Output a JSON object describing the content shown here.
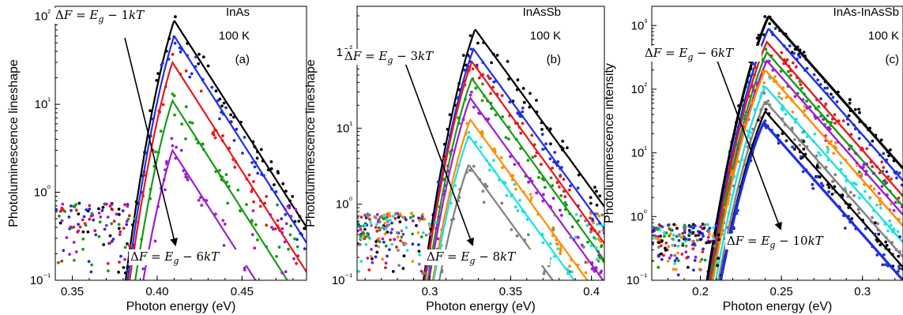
{
  "chart_data": [
    {
      "type": "scatter",
      "panel_label": "(a)",
      "material": "InAs",
      "temperature": "100 K",
      "xlabel": "Photon energy (eV)",
      "ylabel": "Photoluminescence lineshape",
      "xlim": [
        0.34,
        0.488
      ],
      "ylim": [
        0.1,
        130
      ],
      "yscale": "log",
      "xticks": [
        0.35,
        0.4,
        0.45
      ],
      "xticklabels": [
        "0.35",
        "0.40",
        "0.45"
      ],
      "yticks": [
        0.1,
        1,
        10,
        100
      ],
      "yticklabels": [
        "10⁻¹",
        "10⁰",
        "10¹",
        "10²"
      ],
      "arrow": {
        "from_label": "ΔF = E_g − 1kT",
        "to_label": "ΔF = E_g − 6kT"
      },
      "series": [
        {
          "color": "#000000",
          "peak_x": 0.41,
          "peak_y": 90,
          "lw": 2.2
        },
        {
          "color": "#1f2fe0",
          "peak_x": 0.41,
          "peak_y": 60,
          "lw": 2.2
        },
        {
          "color": "#e41a1c",
          "peak_x": 0.409,
          "peak_y": 30,
          "lw": 2.2
        },
        {
          "color": "#1a9a1a",
          "peak_x": 0.409,
          "peak_y": 11,
          "lw": 2.2
        },
        {
          "color": "#9b1fd0",
          "peak_x": 0.409,
          "peak_y": 3,
          "lw": 2.2
        }
      ]
    },
    {
      "type": "scatter",
      "panel_label": "(b)",
      "material": "InAsSb",
      "temperature": "100 K",
      "xlabel": "Photon energy (eV)",
      "ylabel": "Photoluminescence lineshape",
      "xlim": [
        0.255,
        0.408
      ],
      "ylim": [
        0.1,
        400
      ],
      "yscale": "log",
      "xticks": [
        0.3,
        0.35,
        0.4
      ],
      "xticklabels": [
        "0.3",
        "0.35",
        "0.4"
      ],
      "yticks": [
        0.1,
        1,
        10,
        100
      ],
      "yticklabels": [
        "10⁻¹",
        "10⁰",
        "10¹",
        "10²"
      ],
      "arrow": {
        "from_label": "ΔF = E_g − 3kT",
        "to_label": "ΔF = E_g − 8kT"
      },
      "series": [
        {
          "color": "#000000",
          "peak_x": 0.328,
          "peak_y": 200,
          "lw": 2.2
        },
        {
          "color": "#1f2fe0",
          "peak_x": 0.327,
          "peak_y": 110,
          "lw": 2.2
        },
        {
          "color": "#e41a1c",
          "peak_x": 0.326,
          "peak_y": 75,
          "lw": 2.2
        },
        {
          "color": "#1a9a1a",
          "peak_x": 0.326,
          "peak_y": 45,
          "lw": 2.2
        },
        {
          "color": "#9b1fd0",
          "peak_x": 0.325,
          "peak_y": 25,
          "lw": 2.2
        },
        {
          "color": "#ff8c00",
          "peak_x": 0.325,
          "peak_y": 13,
          "lw": 2.2
        },
        {
          "color": "#20e0e0",
          "peak_x": 0.324,
          "peak_y": 8,
          "lw": 2.2
        },
        {
          "color": "#808080",
          "peak_x": 0.324,
          "peak_y": 3.3,
          "lw": 2.2
        }
      ]
    },
    {
      "type": "scatter",
      "panel_label": "(c)",
      "material": "InAs-InAsSb",
      "temperature": "100 K",
      "xlabel": "Photon energy (eV)",
      "ylabel": "Photoluminescence intensity",
      "xlim": [
        0.17,
        0.325
      ],
      "ylim": [
        0.1,
        2000
      ],
      "yscale": "log",
      "xticks": [
        0.2,
        0.25,
        0.3
      ],
      "xticklabels": [
        "0.2",
        "0.25",
        "0.3"
      ],
      "yticks": [
        0.1,
        1,
        10,
        100,
        1000
      ],
      "yticklabels": [
        "10⁻¹",
        "10⁰",
        "10¹",
        "10²",
        "10³"
      ],
      "arrow": {
        "from_label": "ΔF = E_g − 6kT",
        "to_label": "ΔF = E_g − 10kT"
      },
      "series": [
        {
          "color": "#000000",
          "peak_x": 0.242,
          "peak_y": 1400,
          "lw": 3.2
        },
        {
          "color": "#1f2fe0",
          "peak_x": 0.242,
          "peak_y": 900,
          "lw": 2.4
        },
        {
          "color": "#e41a1c",
          "peak_x": 0.241,
          "peak_y": 550,
          "lw": 2.4
        },
        {
          "color": "#1a9a1a",
          "peak_x": 0.241,
          "peak_y": 380,
          "lw": 2.4
        },
        {
          "color": "#9b1fd0",
          "peak_x": 0.241,
          "peak_y": 280,
          "lw": 2.4
        },
        {
          "color": "#ff8c00",
          "peak_x": 0.24,
          "peak_y": 200,
          "lw": 2.4
        },
        {
          "color": "#20e0e0",
          "peak_x": 0.24,
          "peak_y": 110,
          "lw": 2.4
        },
        {
          "color": "#808080",
          "peak_x": 0.24,
          "peak_y": 65,
          "lw": 2.4
        },
        {
          "color": "#000000",
          "peak_x": 0.24,
          "peak_y": 45,
          "lw": 2.4
        },
        {
          "color": "#1f2fe0",
          "peak_x": 0.239,
          "peak_y": 30,
          "lw": 3.2
        }
      ]
    }
  ]
}
